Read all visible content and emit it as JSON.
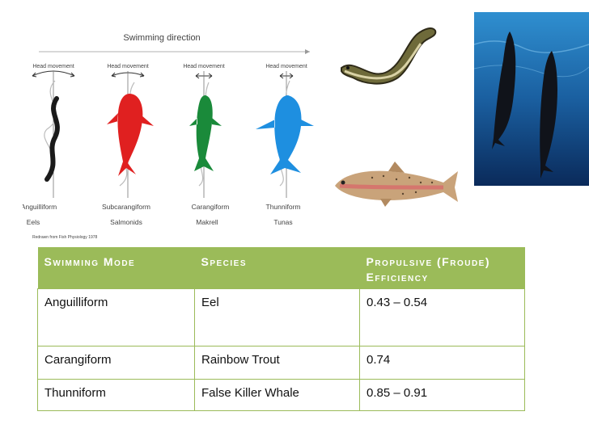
{
  "diagram": {
    "title": "Swimming direction",
    "head_movement_label": "Head movement",
    "modes": [
      {
        "mode": "Anguilliform",
        "example": "Eels",
        "fish_color": "#1a1a1a"
      },
      {
        "mode": "Subcarangiform",
        "example": "Salmonids",
        "fish_color": "#e02020"
      },
      {
        "mode": "Carangiform",
        "example": "Makrell",
        "fish_color": "#1a8a3a"
      },
      {
        "mode": "Thunniform",
        "example": "Tunas",
        "fish_color": "#1e8fe0"
      }
    ],
    "credit": "Redrawn from Fish Physiology 1978"
  },
  "table": {
    "headers": [
      "Swimming Mode",
      "Species",
      "Propulsive (Froude) Efficiency"
    ],
    "rows": [
      [
        "Anguilliform",
        "Eel",
        "0.43 – 0.54"
      ],
      [
        "Carangiform",
        "Rainbow Trout",
        "0.74"
      ],
      [
        "Thunniform",
        "False Killer Whale",
        "0.85 – 0.91"
      ]
    ],
    "header_color": "#9bbb59"
  },
  "photos": {
    "eel": "eel-photo",
    "trout": "rainbow-trout-photo",
    "whales": "false-killer-whale-photo"
  }
}
